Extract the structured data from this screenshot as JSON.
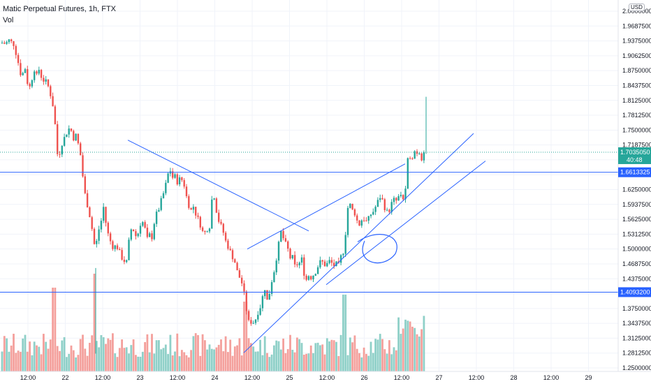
{
  "legend": {
    "title": "Matic Perpetual Futures, 1h, FTX",
    "vol": "Vol"
  },
  "currency": "USD",
  "colors": {
    "up": "#26a69a",
    "down": "#ef5350",
    "upVol": "#8fd0c8",
    "downVol": "#f4a09c",
    "drawing": "#2962ff",
    "lastPrice": "#26a69a"
  },
  "chart_data": {
    "type": "candlestick",
    "title": "Matic Perpetual Futures, 1h, FTX",
    "ylim": [
      1.25,
      2.0
    ],
    "price_ticks": [
      "2.0000000",
      "1.9687500",
      "1.9375000",
      "1.9062500",
      "1.8750000",
      "1.8437500",
      "1.8125000",
      "1.7812500",
      "1.7500000",
      "1.7187500",
      "1.6875000",
      "1.6562500",
      "1.6250000",
      "1.5937500",
      "1.5625000",
      "1.5312500",
      "1.5000000",
      "1.4687500",
      "1.4375000",
      "1.4062500",
      "1.3750000",
      "1.3437500",
      "1.3125000",
      "1.2812500",
      "1.2500000"
    ],
    "time_ticks": [
      "12:00",
      "22",
      "12:00",
      "23",
      "12:00",
      "24",
      "12:00",
      "25",
      "12:00",
      "26",
      "12:00",
      "27",
      "12:00",
      "28",
      "12:00",
      "29"
    ],
    "last_price": {
      "value": "1.7035050",
      "countdown": "40:48"
    },
    "horizontal_levels": [
      {
        "value": 1.6613325,
        "label": "1.6613325"
      },
      {
        "value": 1.40932,
        "label": "1.4093200"
      }
    ],
    "close_path": [
      [
        0,
        1.93
      ],
      [
        4,
        1.935
      ],
      [
        8,
        1.93
      ],
      [
        12,
        1.94
      ],
      [
        16,
        1.935
      ],
      [
        20,
        1.93
      ],
      [
        24,
        1.905
      ],
      [
        28,
        1.88
      ],
      [
        30,
        1.865
      ],
      [
        33,
        1.87
      ],
      [
        36,
        1.88
      ],
      [
        38,
        1.86
      ],
      [
        40,
        1.845
      ],
      [
        43,
        1.84
      ],
      [
        46,
        1.86
      ],
      [
        49,
        1.88
      ],
      [
        52,
        1.86
      ],
      [
        55,
        1.88
      ],
      [
        58,
        1.87
      ],
      [
        61,
        1.85
      ],
      [
        64,
        1.86
      ],
      [
        67,
        1.845
      ],
      [
        70,
        1.84
      ],
      [
        73,
        1.82
      ],
      [
        76,
        1.8
      ],
      [
        79,
        1.76
      ],
      [
        82,
        1.7
      ],
      [
        85,
        1.7
      ],
      [
        88,
        1.72
      ],
      [
        91,
        1.73
      ],
      [
        94,
        1.74
      ],
      [
        97,
        1.75
      ],
      [
        100,
        1.755
      ],
      [
        103,
        1.745
      ],
      [
        106,
        1.73
      ],
      [
        109,
        1.74
      ],
      [
        112,
        1.72
      ],
      [
        115,
        1.7
      ],
      [
        118,
        1.66
      ],
      [
        121,
        1.62
      ],
      [
        124,
        1.6
      ],
      [
        127,
        1.58
      ],
      [
        130,
        1.56
      ],
      [
        133,
        1.53
      ],
      [
        136,
        1.5
      ],
      [
        139,
        1.52
      ],
      [
        142,
        1.545
      ],
      [
        145,
        1.56
      ],
      [
        148,
        1.59
      ],
      [
        151,
        1.56
      ],
      [
        154,
        1.535
      ],
      [
        157,
        1.52
      ],
      [
        160,
        1.51
      ],
      [
        163,
        1.5
      ],
      [
        166,
        1.51
      ],
      [
        169,
        1.5
      ],
      [
        172,
        1.49
      ],
      [
        175,
        1.48
      ],
      [
        178,
        1.475
      ],
      [
        181,
        1.47
      ],
      [
        184,
        1.51
      ],
      [
        187,
        1.54
      ],
      [
        190,
        1.545
      ],
      [
        193,
        1.53
      ],
      [
        196,
        1.525
      ],
      [
        199,
        1.54
      ],
      [
        202,
        1.56
      ],
      [
        205,
        1.555
      ],
      [
        208,
        1.54
      ],
      [
        211,
        1.52
      ],
      [
        214,
        1.53
      ],
      [
        217,
        1.52
      ],
      [
        220,
        1.55
      ],
      [
        223,
        1.57
      ],
      [
        226,
        1.58
      ],
      [
        229,
        1.59
      ],
      [
        232,
        1.61
      ],
      [
        235,
        1.62
      ],
      [
        238,
        1.64
      ],
      [
        241,
        1.66
      ],
      [
        244,
        1.665
      ],
      [
        247,
        1.65
      ],
      [
        250,
        1.655
      ],
      [
        253,
        1.64
      ],
      [
        256,
        1.645
      ],
      [
        259,
        1.65
      ],
      [
        262,
        1.64
      ],
      [
        265,
        1.63
      ],
      [
        268,
        1.6
      ],
      [
        271,
        1.59
      ],
      [
        274,
        1.58
      ],
      [
        277,
        1.59
      ],
      [
        280,
        1.575
      ],
      [
        283,
        1.565
      ],
      [
        286,
        1.555
      ],
      [
        289,
        1.54
      ],
      [
        292,
        1.53
      ],
      [
        295,
        1.54
      ],
      [
        298,
        1.545
      ],
      [
        301,
        1.55
      ],
      [
        304,
        1.62
      ],
      [
        307,
        1.61
      ],
      [
        310,
        1.58
      ],
      [
        313,
        1.56
      ],
      [
        316,
        1.55
      ],
      [
        319,
        1.54
      ],
      [
        322,
        1.52
      ],
      [
        325,
        1.51
      ],
      [
        328,
        1.5
      ],
      [
        331,
        1.49
      ],
      [
        334,
        1.48
      ],
      [
        337,
        1.47
      ],
      [
        340,
        1.45
      ],
      [
        343,
        1.44
      ],
      [
        346,
        1.43
      ],
      [
        349,
        1.41
      ],
      [
        352,
        1.38
      ],
      [
        355,
        1.35
      ],
      [
        358,
        1.34
      ],
      [
        361,
        1.355
      ],
      [
        364,
        1.34
      ],
      [
        367,
        1.36
      ],
      [
        370,
        1.37
      ],
      [
        373,
        1.38
      ],
      [
        376,
        1.4
      ],
      [
        379,
        1.42
      ],
      [
        382,
        1.39
      ],
      [
        385,
        1.4
      ],
      [
        388,
        1.43
      ],
      [
        391,
        1.44
      ],
      [
        394,
        1.47
      ],
      [
        397,
        1.49
      ],
      [
        400,
        1.52
      ],
      [
        403,
        1.54
      ],
      [
        406,
        1.52
      ],
      [
        409,
        1.51
      ],
      [
        412,
        1.5
      ],
      [
        415,
        1.48
      ],
      [
        418,
        1.49
      ],
      [
        421,
        1.46
      ],
      [
        424,
        1.47
      ],
      [
        427,
        1.465
      ],
      [
        430,
        1.475
      ],
      [
        433,
        1.48
      ],
      [
        436,
        1.44
      ],
      [
        439,
        1.435
      ],
      [
        442,
        1.445
      ],
      [
        445,
        1.44
      ],
      [
        448,
        1.445
      ],
      [
        451,
        1.45
      ],
      [
        454,
        1.46
      ],
      [
        457,
        1.47
      ],
      [
        460,
        1.475
      ],
      [
        463,
        1.47
      ],
      [
        466,
        1.465
      ],
      [
        469,
        1.47
      ],
      [
        472,
        1.475
      ],
      [
        475,
        1.47
      ],
      [
        478,
        1.465
      ],
      [
        481,
        1.47
      ],
      [
        484,
        1.46
      ],
      [
        487,
        1.48
      ],
      [
        490,
        1.49
      ],
      [
        493,
        1.5
      ],
      [
        496,
        1.56
      ],
      [
        499,
        1.6
      ],
      [
        502,
        1.59
      ],
      [
        505,
        1.58
      ],
      [
        508,
        1.575
      ],
      [
        511,
        1.56
      ],
      [
        514,
        1.55
      ],
      [
        517,
        1.56
      ],
      [
        520,
        1.565
      ],
      [
        523,
        1.56
      ],
      [
        526,
        1.555
      ],
      [
        529,
        1.57
      ],
      [
        532,
        1.575
      ],
      [
        535,
        1.58
      ],
      [
        538,
        1.59
      ],
      [
        541,
        1.6
      ],
      [
        544,
        1.61
      ],
      [
        547,
        1.605
      ],
      [
        550,
        1.59
      ],
      [
        553,
        1.58
      ],
      [
        556,
        1.575
      ],
      [
        559,
        1.59
      ],
      [
        562,
        1.6
      ],
      [
        565,
        1.605
      ],
      [
        568,
        1.6
      ],
      [
        571,
        1.61
      ],
      [
        574,
        1.615
      ],
      [
        577,
        1.605
      ],
      [
        580,
        1.61
      ],
      [
        583,
        1.68
      ],
      [
        586,
        1.7
      ],
      [
        589,
        1.69
      ],
      [
        592,
        1.7
      ],
      [
        595,
        1.71
      ],
      [
        598,
        1.7
      ],
      [
        601,
        1.705
      ],
      [
        604,
        1.69
      ],
      [
        607,
        1.695
      ],
      [
        610,
        1.7035
      ]
    ]
  }
}
